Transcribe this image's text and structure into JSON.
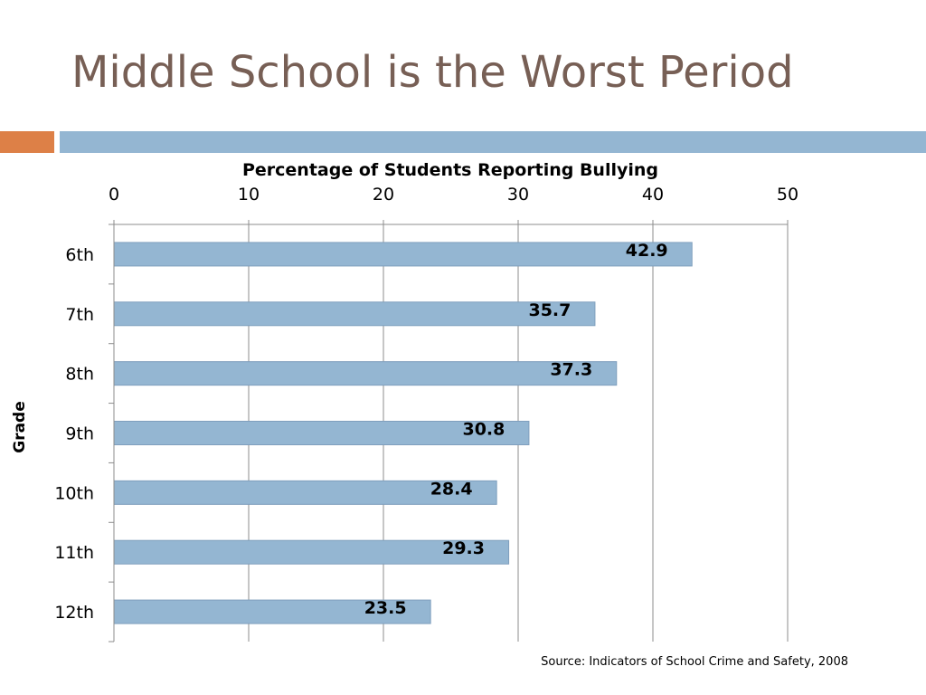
{
  "slide": {
    "title": "Middle School is the Worst Period",
    "source": "Source: Indicators of School Crime and Safety, 2008"
  },
  "colors": {
    "title": "#775f55",
    "accent_orange": "#dd8047",
    "accent_blue": "#94b6d2",
    "bar_fill": "#94b6d2",
    "bar_stroke": "#7f9fbd",
    "grid": "#8c8c8c"
  },
  "chart_data": {
    "type": "bar",
    "orientation": "horizontal",
    "title": "Percentage of Students Reporting Bullying",
    "xlabel": "",
    "ylabel": "Grade",
    "categories": [
      "6th",
      "7th",
      "8th",
      "9th",
      "10th",
      "11th",
      "12th"
    ],
    "values": [
      42.9,
      35.7,
      37.3,
      30.8,
      28.4,
      29.3,
      23.5
    ],
    "data_labels": [
      "42.9",
      "35.7",
      "37.3",
      "30.8",
      "28.4",
      "29.3",
      "23.5"
    ],
    "xlim": [
      0,
      50
    ],
    "xticks": [
      0,
      10,
      20,
      30,
      40,
      50
    ],
    "x_axis_position": "top",
    "grid": true,
    "legend": "none"
  }
}
